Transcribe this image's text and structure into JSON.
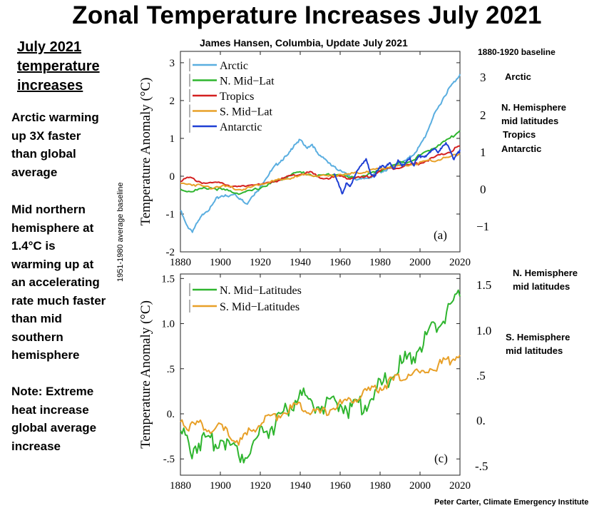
{
  "title": "Zonal Temperature Increases July 2021",
  "subtitle": "James Hansen, Columbia, Update   July 2021",
  "baseline_note_top": "1880-1920  baseline",
  "baseline_note_side": "1951-1980 average baseline",
  "credit": "Peter Carter, Climate Emergency Institute",
  "side_panel": {
    "heading": [
      "July 2021",
      "temperature",
      "increases"
    ],
    "notes": [
      [
        "Arctic warming",
        "up 3X faster",
        "than global",
        "average"
      ],
      [
        "Mid northern",
        "hemisphere at",
        "1.4°C is",
        "warming up at",
        "an accelerating",
        "rate much faster",
        "than mid",
        "southern",
        "hemisphere"
      ],
      [
        "Note: Extreme",
        "heat increase",
        "global average",
        "increase"
      ]
    ]
  },
  "right_labels_top": {
    "ticks": [
      "3",
      "2",
      "1",
      "0",
      "−1"
    ],
    "labels": [
      [
        "Arctic"
      ],
      [
        "N. Hemisphere",
        "mid latitudes"
      ],
      [
        "Tropics"
      ],
      [
        "Antarctic"
      ]
    ]
  },
  "right_labels_bottom": {
    "ticks": [
      "1.5",
      "1.0",
      ".5",
      "0.",
      "-.5"
    ],
    "labels": [
      [
        "N. Hemisphere",
        "mid latitudes"
      ],
      [
        "S. Hemisphere",
        "mid latitudes"
      ]
    ]
  },
  "colors": {
    "arctic": "#5aaee0",
    "n_mid": "#2fb52f",
    "tropics": "#d42020",
    "s_mid": "#e8a028",
    "antarctic": "#1f3fd4"
  },
  "chart_data": [
    {
      "type": "line",
      "panel_label": "(a)",
      "ylabel": "Temperature Anomaly (°C)",
      "xlim": [
        1880,
        2020
      ],
      "ylim": [
        -2,
        3.3
      ],
      "xticks": [
        "1880",
        "1900",
        "1920",
        "1940",
        "1960",
        "1980",
        "2000",
        "2020"
      ],
      "yticks": [
        "3",
        "2",
        "1",
        "0",
        "-1",
        "-2"
      ],
      "ytick_values": [
        3,
        2,
        1,
        0,
        -1,
        -2
      ],
      "legend": "top-left",
      "series": [
        {
          "name": "Arctic",
          "color": "#5aaee0",
          "x": [
            1880,
            1883,
            1886,
            1889,
            1892,
            1895,
            1898,
            1901,
            1904,
            1907,
            1910,
            1913,
            1916,
            1919,
            1922,
            1925,
            1928,
            1931,
            1934,
            1937,
            1940,
            1943,
            1946,
            1949,
            1952,
            1955,
            1958,
            1961,
            1964,
            1967,
            1970,
            1973,
            1976,
            1979,
            1982,
            1985,
            1988,
            1991,
            1994,
            1997,
            2000,
            2003,
            2006,
            2009,
            2012,
            2015,
            2018,
            2020
          ],
          "y": [
            -0.9,
            -1.3,
            -1.45,
            -1.2,
            -0.95,
            -0.85,
            -0.6,
            -0.5,
            -0.55,
            -0.45,
            -0.6,
            -0.75,
            -0.5,
            -0.4,
            -0.1,
            0.1,
            0.3,
            0.45,
            0.55,
            0.85,
            0.95,
            0.75,
            0.85,
            0.55,
            0.5,
            0.3,
            0.2,
            0.15,
            0.0,
            -0.05,
            -0.1,
            -0.05,
            0.0,
            0.1,
            0.15,
            0.2,
            0.3,
            0.35,
            0.45,
            0.6,
            0.8,
            1.1,
            1.5,
            1.8,
            2.1,
            2.35,
            2.55,
            2.7
          ]
        },
        {
          "name": "N. Mid−Lat",
          "color": "#2fb52f",
          "x": [
            1880,
            1885,
            1890,
            1895,
            1900,
            1905,
            1910,
            1915,
            1920,
            1925,
            1930,
            1935,
            1940,
            1945,
            1950,
            1955,
            1960,
            1965,
            1970,
            1975,
            1980,
            1985,
            1990,
            1995,
            2000,
            2005,
            2010,
            2015,
            2020
          ],
          "y": [
            -0.35,
            -0.4,
            -0.35,
            -0.3,
            -0.35,
            -0.4,
            -0.45,
            -0.4,
            -0.3,
            -0.2,
            -0.1,
            0.05,
            0.1,
            0.05,
            0.0,
            0.05,
            0.05,
            -0.05,
            0.0,
            0.05,
            0.15,
            0.25,
            0.35,
            0.4,
            0.55,
            0.7,
            0.85,
            1.0,
            1.2
          ]
        },
        {
          "name": "Tropics",
          "color": "#d42020",
          "x": [
            1880,
            1885,
            1890,
            1895,
            1900,
            1905,
            1910,
            1915,
            1920,
            1925,
            1930,
            1935,
            1940,
            1945,
            1950,
            1955,
            1960,
            1965,
            1970,
            1975,
            1980,
            1985,
            1990,
            1995,
            2000,
            2005,
            2010,
            2015,
            2020
          ],
          "y": [
            -0.1,
            -0.05,
            -0.15,
            -0.2,
            -0.15,
            -0.25,
            -0.3,
            -0.2,
            -0.25,
            -0.15,
            -0.1,
            0.0,
            0.05,
            0.1,
            -0.05,
            -0.05,
            0.0,
            -0.05,
            -0.05,
            0.0,
            0.15,
            0.2,
            0.25,
            0.3,
            0.35,
            0.45,
            0.55,
            0.65,
            0.8
          ]
        },
        {
          "name": "S. Mid−Lat",
          "color": "#e8a028",
          "x": [
            1880,
            1885,
            1890,
            1895,
            1900,
            1905,
            1910,
            1915,
            1920,
            1925,
            1930,
            1935,
            1940,
            1945,
            1950,
            1955,
            1960,
            1965,
            1970,
            1975,
            1980,
            1985,
            1990,
            1995,
            2000,
            2005,
            2010,
            2015,
            2020
          ],
          "y": [
            -0.2,
            -0.2,
            -0.25,
            -0.3,
            -0.25,
            -0.3,
            -0.35,
            -0.3,
            -0.2,
            -0.15,
            -0.1,
            -0.05,
            0.0,
            0.05,
            0.0,
            0.0,
            0.05,
            0.05,
            0.1,
            0.15,
            0.2,
            0.25,
            0.25,
            0.3,
            0.35,
            0.4,
            0.45,
            0.5,
            0.6
          ]
        },
        {
          "name": "Antarctic",
          "color": "#1f3fd4",
          "x": [
            1957,
            1959,
            1961,
            1963,
            1965,
            1967,
            1969,
            1971,
            1973,
            1975,
            1977,
            1979,
            1981,
            1983,
            1985,
            1987,
            1989,
            1991,
            1993,
            1995,
            1997,
            1999,
            2001,
            2003,
            2005,
            2007,
            2009,
            2011,
            2013,
            2015,
            2017,
            2019,
            2020
          ],
          "y": [
            0.1,
            -0.2,
            -0.45,
            -0.2,
            -0.3,
            0.0,
            0.15,
            0.35,
            0.45,
            0.1,
            0.0,
            0.15,
            0.3,
            0.25,
            0.35,
            0.2,
            0.4,
            0.3,
            0.35,
            0.45,
            0.3,
            0.5,
            0.55,
            0.5,
            0.65,
            0.75,
            0.6,
            0.8,
            0.85,
            0.7,
            0.45,
            0.6,
            0.7
          ]
        }
      ]
    },
    {
      "type": "line",
      "panel_label": "(c)",
      "ylabel": "Temperature Anomaly (°C)",
      "xlim": [
        1880,
        2020
      ],
      "ylim": [
        -0.68,
        1.55
      ],
      "xticks": [
        "1880",
        "1900",
        "1920",
        "1940",
        "1960",
        "1980",
        "2000",
        "2020"
      ],
      "yticks": [
        "1.5",
        "1.0",
        ".5",
        "0.",
        "-.5"
      ],
      "ytick_values": [
        1.5,
        1.0,
        0.5,
        0.0,
        -0.5
      ],
      "legend": "top-left",
      "series": [
        {
          "name": "N. Mid−Latitudes",
          "color": "#2fb52f",
          "x": [
            1880,
            1885,
            1890,
            1895,
            1900,
            1905,
            1910,
            1915,
            1920,
            1925,
            1930,
            1935,
            1940,
            1945,
            1950,
            1955,
            1960,
            1965,
            1970,
            1975,
            1980,
            1985,
            1990,
            1995,
            2000,
            2005,
            2010,
            2015,
            2020
          ],
          "y": [
            -0.2,
            -0.4,
            -0.3,
            -0.35,
            -0.25,
            -0.35,
            -0.45,
            -0.4,
            -0.2,
            -0.15,
            -0.05,
            0.1,
            0.2,
            0.15,
            0.1,
            0.05,
            0.15,
            0.05,
            0.1,
            0.15,
            0.3,
            0.4,
            0.55,
            0.6,
            0.75,
            0.9,
            1.0,
            1.2,
            1.3
          ]
        },
        {
          "name": "S. Mid−Latitudes",
          "color": "#e8a028",
          "x": [
            1880,
            1885,
            1890,
            1895,
            1900,
            1905,
            1910,
            1915,
            1920,
            1925,
            1930,
            1935,
            1940,
            1945,
            1950,
            1955,
            1960,
            1965,
            1970,
            1975,
            1980,
            1985,
            1990,
            1995,
            2000,
            2005,
            2010,
            2015,
            2020
          ],
          "y": [
            -0.05,
            -0.15,
            -0.1,
            -0.2,
            -0.15,
            -0.25,
            -0.3,
            -0.2,
            -0.1,
            -0.05,
            0.0,
            0.05,
            0.1,
            0.05,
            0.0,
            0.05,
            0.1,
            0.15,
            0.2,
            0.25,
            0.3,
            0.35,
            0.4,
            0.45,
            0.45,
            0.5,
            0.55,
            0.6,
            0.65
          ]
        }
      ]
    }
  ]
}
